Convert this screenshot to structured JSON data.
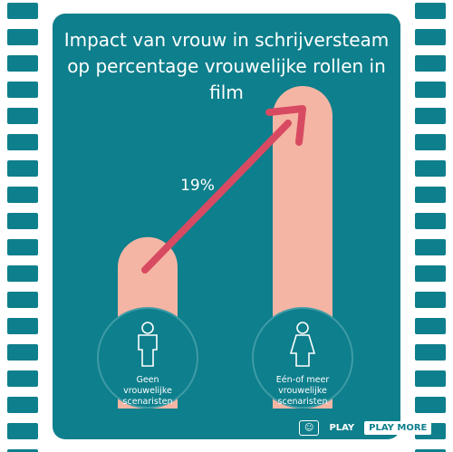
{
  "chart_data": {
    "type": "bar",
    "title": "Impact van vrouw in schrijversteam op percentage vrouwelijke rollen in film",
    "categories": [
      "Geen vrouwelijke scenaristen",
      "Eén-of meer vrouwelijke scenaristen"
    ],
    "values": [
      17,
      36
    ],
    "color": "#f5b5a4",
    "ylim": [
      0,
      36
    ],
    "annotation": "19%",
    "arrow_color": "#d84a62"
  },
  "logo": {
    "first": "PLAY",
    "second": "PLAY MORE"
  }
}
